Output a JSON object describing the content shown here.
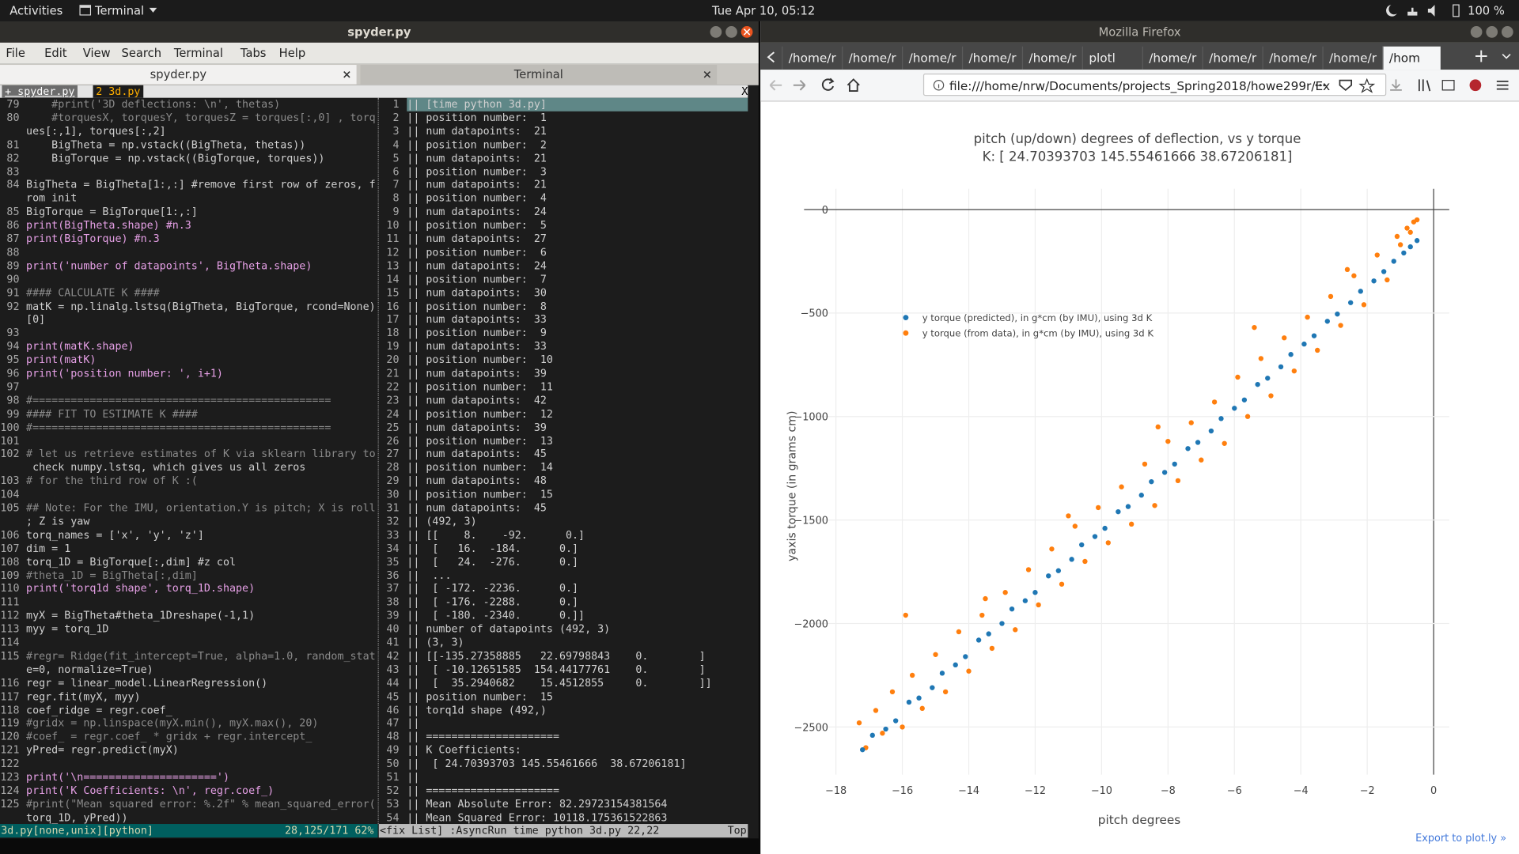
{
  "top_bar": {
    "activities": "Activities",
    "app": "Terminal",
    "clock": "Tue Apr 10, 05:12",
    "battery": "100 %"
  },
  "terminal": {
    "title": "spyder.py",
    "menu": [
      "File",
      "Edit",
      "View",
      "Search",
      "Terminal",
      "Tabs",
      "Help"
    ],
    "tabs": [
      "spyder.py",
      "Terminal"
    ],
    "vim_tabs": [
      "+ spyder.py",
      "2 3d.py"
    ],
    "vim_close": "X",
    "editor": [
      {
        "num": 79,
        "code": "    #print('3D deflections: \\n', thetas)"
      },
      {
        "num": 80,
        "code": "    #torquesX, torquesY, torquesZ = torques[:,0] , torq"
      },
      {
        "code": "ues[:,1], torques[:,2]"
      },
      {
        "num": 81,
        "code": "    BigTheta = np.vstack((BigTheta, thetas))"
      },
      {
        "num": 82,
        "code": "    BigTorque = np.vstack((BigTorque, torques))"
      },
      {
        "num": 83
      },
      {
        "num": 84,
        "code": "BigTheta = BigTheta[1:,:] #remove first row of zeros, f"
      },
      {
        "code": "rom init"
      },
      {
        "num": 85,
        "code": "BigTorque = BigTorque[1:,:]"
      },
      {
        "num": 86,
        "code": "print(BigTheta.shape) #n.3"
      },
      {
        "num": 87,
        "code": "print(BigTorque) #n.3"
      },
      {
        "num": 88
      },
      {
        "num": 89,
        "code": "print('number of datapoints', BigTheta.shape)"
      },
      {
        "num": 90
      },
      {
        "num": 91,
        "code": "#### CALCULATE K ####"
      },
      {
        "num": 92,
        "code": "matK = np.linalg.lstsq(BigTheta, BigTorque, rcond=None)"
      },
      {
        "code": "[0]"
      },
      {
        "num": 93
      },
      {
        "num": 94,
        "code": "print(matK.shape)"
      },
      {
        "num": 95,
        "code": "print(matK)"
      },
      {
        "num": 96,
        "code": "print('position number: ', i+1)"
      },
      {
        "num": 97
      },
      {
        "num": 98,
        "code": "#==============================================="
      },
      {
        "num": 99,
        "code": "#### FIT TO ESTIMATE K ####"
      },
      {
        "num": 100,
        "code": "#==============================================="
      },
      {
        "num": 101
      },
      {
        "num": 102,
        "code": "# let us retrieve estimates of K via sklearn library to"
      },
      {
        "code": " check numpy.lstsq, which gives us all zeros"
      },
      {
        "num": 103,
        "code": "# for the third row of K :("
      },
      {
        "num": 104
      },
      {
        "num": 105,
        "code": "## Note: For the IMU, orientation.Y is pitch; X is roll"
      },
      {
        "code": "; Z is yaw"
      },
      {
        "num": 106,
        "code": "torq_names = ['x', 'y', 'z']"
      },
      {
        "num": 107,
        "code": "dim = 1"
      },
      {
        "num": 108,
        "code": "torq_1D = BigTorque[:,dim] #z col"
      },
      {
        "num": 109,
        "code": "#theta_1D = BigTheta[:,dim]"
      },
      {
        "num": 110,
        "code": "print('torq1d shape', torq_1D.shape)"
      },
      {
        "num": 111
      },
      {
        "num": 112,
        "code": "myX = BigTheta#theta_1Dreshape(-1,1)"
      },
      {
        "num": 113,
        "code": "myy = torq_1D"
      },
      {
        "num": 114
      },
      {
        "num": 115,
        "code": "#regr= Ridge(fit_intercept=True, alpha=1.0, random_stat"
      },
      {
        "code": "e=0, normalize=True)"
      },
      {
        "num": 116,
        "code": "regr = linear_model.LinearRegression()"
      },
      {
        "num": 117,
        "code": "regr.fit(myX, myy)"
      },
      {
        "num": 118,
        "code": "coef_ridge = regr.coef_"
      },
      {
        "num": 119,
        "code": "#gridx = np.linspace(myX.min(), myX.max(), 20)"
      },
      {
        "num": 120,
        "code": "#coef_ = regr.coef_ * gridx + regr.intercept_"
      },
      {
        "num": 121,
        "code": "yPred= regr.predict(myX)"
      },
      {
        "num": 122
      },
      {
        "num": 123,
        "code": "print('\\n=====================')"
      },
      {
        "num": 124,
        "code": "print('K Coefficients: \\n', regr.coef_)"
      },
      {
        "num": 125,
        "code": "#print(\"Mean squared error: %.2f\" % mean_squared_error("
      },
      {
        "code": "torq_1D, yPred))"
      }
    ],
    "quickfix": [
      {
        "num": 1,
        "text": "|| [time python 3d.py]"
      },
      {
        "num": 2,
        "text": "|| position number:  1"
      },
      {
        "num": 3,
        "text": "|| num datapoints:  21"
      },
      {
        "num": 4,
        "text": "|| position number:  2"
      },
      {
        "num": 5,
        "text": "|| num datapoints:  21"
      },
      {
        "num": 6,
        "text": "|| position number:  3"
      },
      {
        "num": 7,
        "text": "|| num datapoints:  21"
      },
      {
        "num": 8,
        "text": "|| position number:  4"
      },
      {
        "num": 9,
        "text": "|| num datapoints:  24"
      },
      {
        "num": 10,
        "text": "|| position number:  5"
      },
      {
        "num": 11,
        "text": "|| num datapoints:  27"
      },
      {
        "num": 12,
        "text": "|| position number:  6"
      },
      {
        "num": 13,
        "text": "|| num datapoints:  24"
      },
      {
        "num": 14,
        "text": "|| position number:  7"
      },
      {
        "num": 15,
        "text": "|| num datapoints:  30"
      },
      {
        "num": 16,
        "text": "|| position number:  8"
      },
      {
        "num": 17,
        "text": "|| num datapoints:  33"
      },
      {
        "num": 18,
        "text": "|| position number:  9"
      },
      {
        "num": 19,
        "text": "|| num datapoints:  33"
      },
      {
        "num": 20,
        "text": "|| position number:  10"
      },
      {
        "num": 21,
        "text": "|| num datapoints:  39"
      },
      {
        "num": 22,
        "text": "|| position number:  11"
      },
      {
        "num": 23,
        "text": "|| num datapoints:  42"
      },
      {
        "num": 24,
        "text": "|| position number:  12"
      },
      {
        "num": 25,
        "text": "|| num datapoints:  39"
      },
      {
        "num": 26,
        "text": "|| position number:  13"
      },
      {
        "num": 27,
        "text": "|| num datapoints:  45"
      },
      {
        "num": 28,
        "text": "|| position number:  14"
      },
      {
        "num": 29,
        "text": "|| num datapoints:  48"
      },
      {
        "num": 30,
        "text": "|| position number:  15"
      },
      {
        "num": 31,
        "text": "|| num datapoints:  45"
      },
      {
        "num": 32,
        "text": "|| (492, 3)"
      },
      {
        "num": 33,
        "text": "|| [[    8.    -92.      0.]"
      },
      {
        "num": 34,
        "text": "||  [   16.  -184.      0.]"
      },
      {
        "num": 35,
        "text": "||  [   24.  -276.      0.]"
      },
      {
        "num": 36,
        "text": "||  ..."
      },
      {
        "num": 37,
        "text": "||  [ -172. -2236.      0.]"
      },
      {
        "num": 38,
        "text": "||  [ -176. -2288.      0.]"
      },
      {
        "num": 39,
        "text": "||  [ -180. -2340.      0.]]"
      },
      {
        "num": 40,
        "text": "|| number of datapoints (492, 3)"
      },
      {
        "num": 41,
        "text": "|| (3, 3)"
      },
      {
        "num": 42,
        "text": "|| [[-135.27358885   22.69798843    0.        ]"
      },
      {
        "num": 43,
        "text": "||  [ -10.12651585  154.44177761    0.        ]"
      },
      {
        "num": 44,
        "text": "||  [  35.2940682    15.4512855     0.        ]]"
      },
      {
        "num": 45,
        "text": "|| position number:  15"
      },
      {
        "num": 46,
        "text": "|| torq1d shape (492,)"
      },
      {
        "num": 47,
        "text": "||"
      },
      {
        "num": 48,
        "text": "|| ====================="
      },
      {
        "num": 49,
        "text": "|| K Coefficients:"
      },
      {
        "num": 50,
        "text": "||  [ 24.70393703 145.55461666  38.67206181]"
      },
      {
        "num": 51,
        "text": "||"
      },
      {
        "num": 52,
        "text": "|| ====================="
      },
      {
        "num": 53,
        "text": "|| Mean Absolute Error: 82.29723154381564"
      },
      {
        "num": 54,
        "text": "|| Mean Squared Error: 10118.175361522863"
      }
    ],
    "status_left": "3d.py[none,unix][python]",
    "status_left_pos": "28,125/171 62%",
    "status_right": "<fix List] :AsyncRun time python 3d.py 22,22",
    "status_right_pos": "Top"
  },
  "firefox": {
    "title": "Mozilla Firefox",
    "tabs": [
      "/home/r",
      "/home/r",
      "/home/r",
      "/home/r",
      "/home/r",
      "plotl",
      "/home/r",
      "/home/r",
      "/home/r",
      "/home/r",
      "/hom"
    ],
    "url": "file:///home/nrw/Documents/projects_Spring2018/howe299r/Ex",
    "export": "Export to plot.ly »"
  },
  "chart_data": {
    "type": "scatter",
    "title": "pitch (up/down) degrees of deflection, vs y torque",
    "subtitle": "K: [ 24.70393703 145.55461666  38.67206181]",
    "x_label": "pitch degrees",
    "y_label": "yaxis torque (in grams cm)",
    "xlim": [
      -18.96,
      0.47
    ],
    "ylim": [
      -2730,
      100
    ],
    "xticks": [
      {
        "value": -18,
        "label": "−18"
      },
      {
        "value": -16,
        "label": "−16"
      },
      {
        "value": -14,
        "label": "−14"
      },
      {
        "value": -12,
        "label": "−12"
      },
      {
        "value": -10,
        "label": "−10"
      },
      {
        "value": -8,
        "label": "−8"
      },
      {
        "value": -6,
        "label": "−6"
      },
      {
        "value": -4,
        "label": "−4"
      },
      {
        "value": -2,
        "label": "−2"
      },
      0
    ],
    "yticks": [
      0,
      {
        "value": -500,
        "label": "−500"
      },
      {
        "value": -1000,
        "label": "−1000"
      },
      {
        "value": -1500,
        "label": "−1500"
      },
      {
        "value": -2000,
        "label": "−2000"
      },
      {
        "value": -2500,
        "label": "−2500"
      }
    ],
    "grid": true,
    "zeroline": true,
    "legend": "top-left",
    "series": [
      {
        "name": "y torque (predicted), in g*cm (by IMU), using 3d K",
        "color": "#1f77b4",
        "x": [
          -17.2,
          -16.9,
          -16.5,
          -16.2,
          -15.8,
          -15.5,
          -15.1,
          -14.8,
          -14.4,
          -14.1,
          -13.7,
          -13.4,
          -13.0,
          -12.7,
          -12.3,
          -12.0,
          -11.6,
          -11.3,
          -10.9,
          -10.6,
          -10.2,
          -9.9,
          -9.5,
          -9.2,
          -8.8,
          -8.5,
          -8.1,
          -7.8,
          -7.4,
          -7.1,
          -6.7,
          -6.4,
          -6.0,
          -5.7,
          -5.3,
          -5.0,
          -4.6,
          -4.3,
          -3.9,
          -3.6,
          -3.2,
          -2.9,
          -2.5,
          -2.2,
          -1.8,
          -1.5,
          -1.2,
          -0.9,
          -0.7,
          -0.5
        ],
        "values": [
          -2610,
          -2540,
          -2510,
          -2470,
          -2380,
          -2360,
          -2310,
          -2240,
          -2200,
          -2160,
          -2080,
          -2050,
          -2000,
          -1930,
          -1890,
          -1850,
          -1770,
          -1745,
          -1690,
          -1620,
          -1580,
          -1540,
          -1460,
          -1435,
          -1380,
          -1315,
          -1270,
          -1230,
          -1155,
          -1125,
          -1070,
          -1010,
          -960,
          -920,
          -845,
          -815,
          -760,
          -700,
          -650,
          -610,
          -540,
          -505,
          -450,
          -395,
          -345,
          -300,
          -250,
          -210,
          -180,
          -150
        ]
      },
      {
        "name": "y torque (from data), in g*cm (by IMU), using 3d K",
        "color": "#ff7f0e",
        "x": [
          -17.3,
          -17.1,
          -16.8,
          -16.6,
          -16.3,
          -16.0,
          -15.7,
          -15.4,
          -15.0,
          -14.7,
          -14.3,
          -14.0,
          -13.6,
          -13.3,
          -12.9,
          -12.6,
          -12.2,
          -11.9,
          -11.5,
          -11.2,
          -10.8,
          -10.5,
          -10.1,
          -9.8,
          -9.4,
          -9.1,
          -8.7,
          -8.4,
          -8.0,
          -7.7,
          -7.3,
          -7.0,
          -6.6,
          -6.3,
          -5.9,
          -5.6,
          -5.2,
          -4.9,
          -4.5,
          -4.2,
          -3.8,
          -3.5,
          -3.1,
          -2.8,
          -2.4,
          -2.1,
          -1.7,
          -1.4,
          -1.1,
          -0.8,
          -0.6,
          -0.5,
          -15.9,
          -13.5,
          -11.0,
          -8.3,
          -5.4,
          -2.6,
          -1.0,
          -0.7
        ],
        "values": [
          -2480,
          -2600,
          -2420,
          -2530,
          -2330,
          -2500,
          -2250,
          -2410,
          -2150,
          -2330,
          -2040,
          -2230,
          -1960,
          -2120,
          -1850,
          -2030,
          -1740,
          -1910,
          -1640,
          -1810,
          -1530,
          -1700,
          -1440,
          -1610,
          -1340,
          -1520,
          -1230,
          -1430,
          -1120,
          -1310,
          -1030,
          -1210,
          -930,
          -1130,
          -810,
          -1000,
          -720,
          -900,
          -620,
          -780,
          -520,
          -680,
          -420,
          -560,
          -320,
          -460,
          -220,
          -340,
          -130,
          -90,
          -60,
          -50,
          -1960,
          -1880,
          -1480,
          -1050,
          -570,
          -290,
          -170,
          -110
        ]
      }
    ]
  }
}
